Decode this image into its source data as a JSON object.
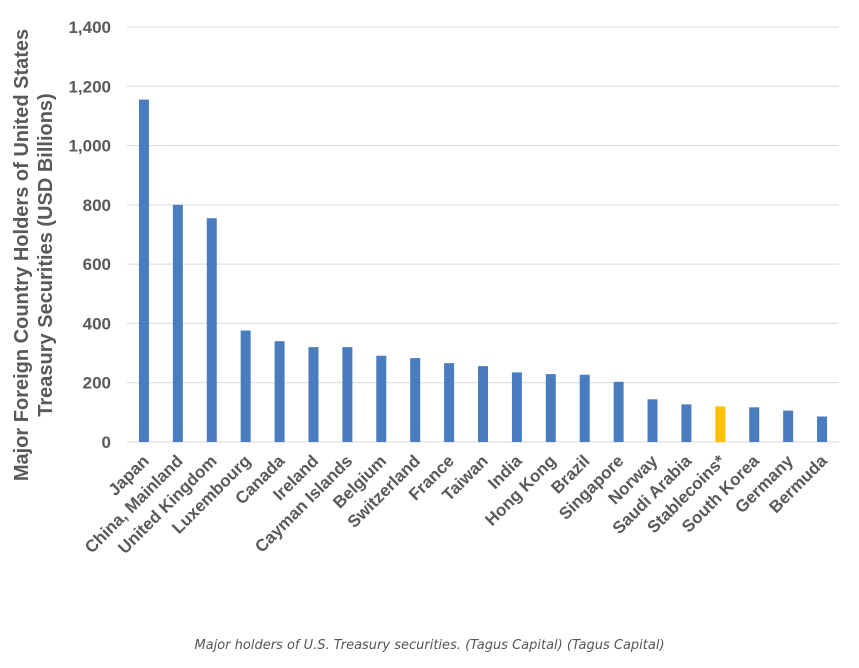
{
  "chart_data": {
    "type": "bar",
    "title": "",
    "xlabel": "",
    "ylabel_lines": [
      "Major Foreign Country Holders of United States",
      "Treasury Securities  (USD Billions)"
    ],
    "ylim": [
      0,
      1400
    ],
    "yticks": [
      0,
      200,
      400,
      600,
      800,
      1000,
      1200,
      1400
    ],
    "ytick_labels": [
      "0",
      "200",
      "400",
      "600",
      "800",
      "1,000",
      "1,200",
      "1,400"
    ],
    "grid": true,
    "legend": "none",
    "categories": [
      "Japan",
      "China, Mainland",
      "United Kingdom",
      "Luxembourg",
      "Canada",
      "Ireland",
      "Cayman Islands",
      "Belgium",
      "Switzerland",
      "France",
      "Taiwan",
      "India",
      "Hong Kong",
      "Brazil",
      "Singapore",
      "Norway",
      "Saudi Arabia",
      "Stablecoins*",
      "South Korea",
      "Germany",
      "Bermuda"
    ],
    "values": [
      1155,
      800,
      755,
      376,
      340,
      320,
      320,
      291,
      283,
      266,
      256,
      235,
      229,
      227,
      203,
      144,
      127,
      120,
      117,
      106,
      86
    ],
    "colors": {
      "default": "#4a7cc0",
      "highlight": "#ffc000",
      "grid": "#d9d9d9",
      "axis": "#d9d9d9"
    },
    "highlight_categories": [
      "Stablecoins*"
    ]
  },
  "caption": "Major holders of U.S. Treasury securities. (Tagus Capital) (Tagus Capital)"
}
